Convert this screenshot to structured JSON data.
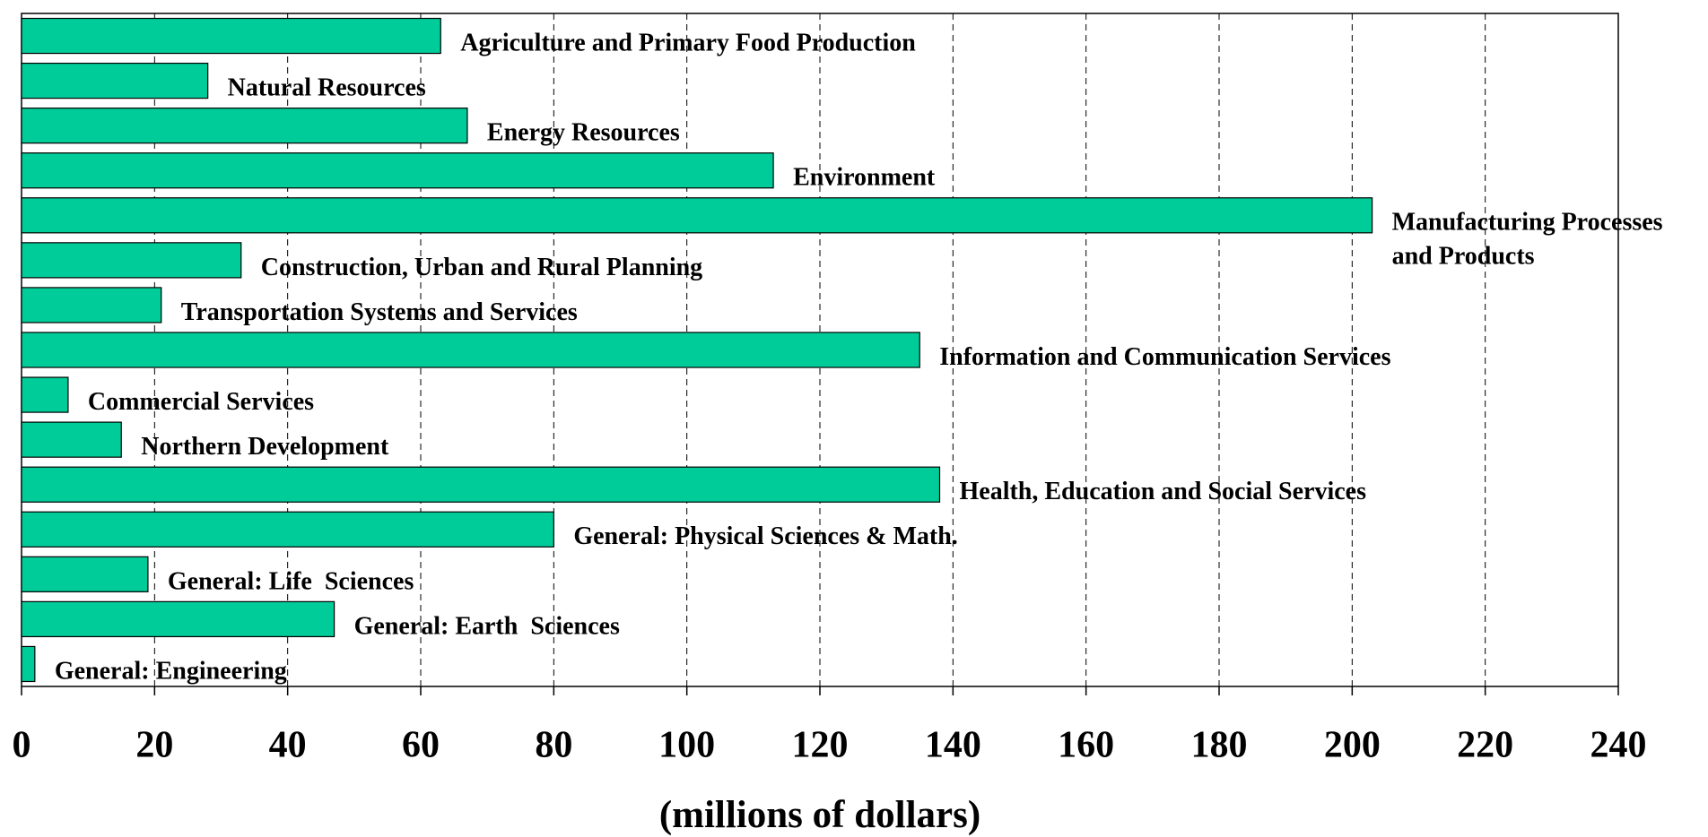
{
  "chart_data": {
    "type": "barh",
    "categories": [
      "Agriculture and Primary Food Production",
      "Natural Resources",
      "Energy Resources",
      "Environment",
      "Manufacturing Processes\nand Products",
      "Construction, Urban and Rural Planning",
      "Transportation Systems and Services",
      "Information and Communication Services",
      "Commercial Services",
      "Northern Development",
      "Health, Education and Social Services",
      "General: Physical Sciences & Math.",
      "General: Life  Sciences",
      "General: Earth  Sciences",
      "General: Engineering"
    ],
    "values": [
      63,
      28,
      67,
      113,
      203,
      33,
      21,
      135,
      7,
      15,
      138,
      80,
      19,
      47,
      2
    ],
    "color": "#00cc99",
    "xlim": [
      0,
      240
    ],
    "xticks": [
      0,
      20,
      40,
      60,
      80,
      100,
      120,
      140,
      160,
      180,
      200,
      220,
      240
    ],
    "xlabel": "(millions of dollars)",
    "grid": true
  }
}
